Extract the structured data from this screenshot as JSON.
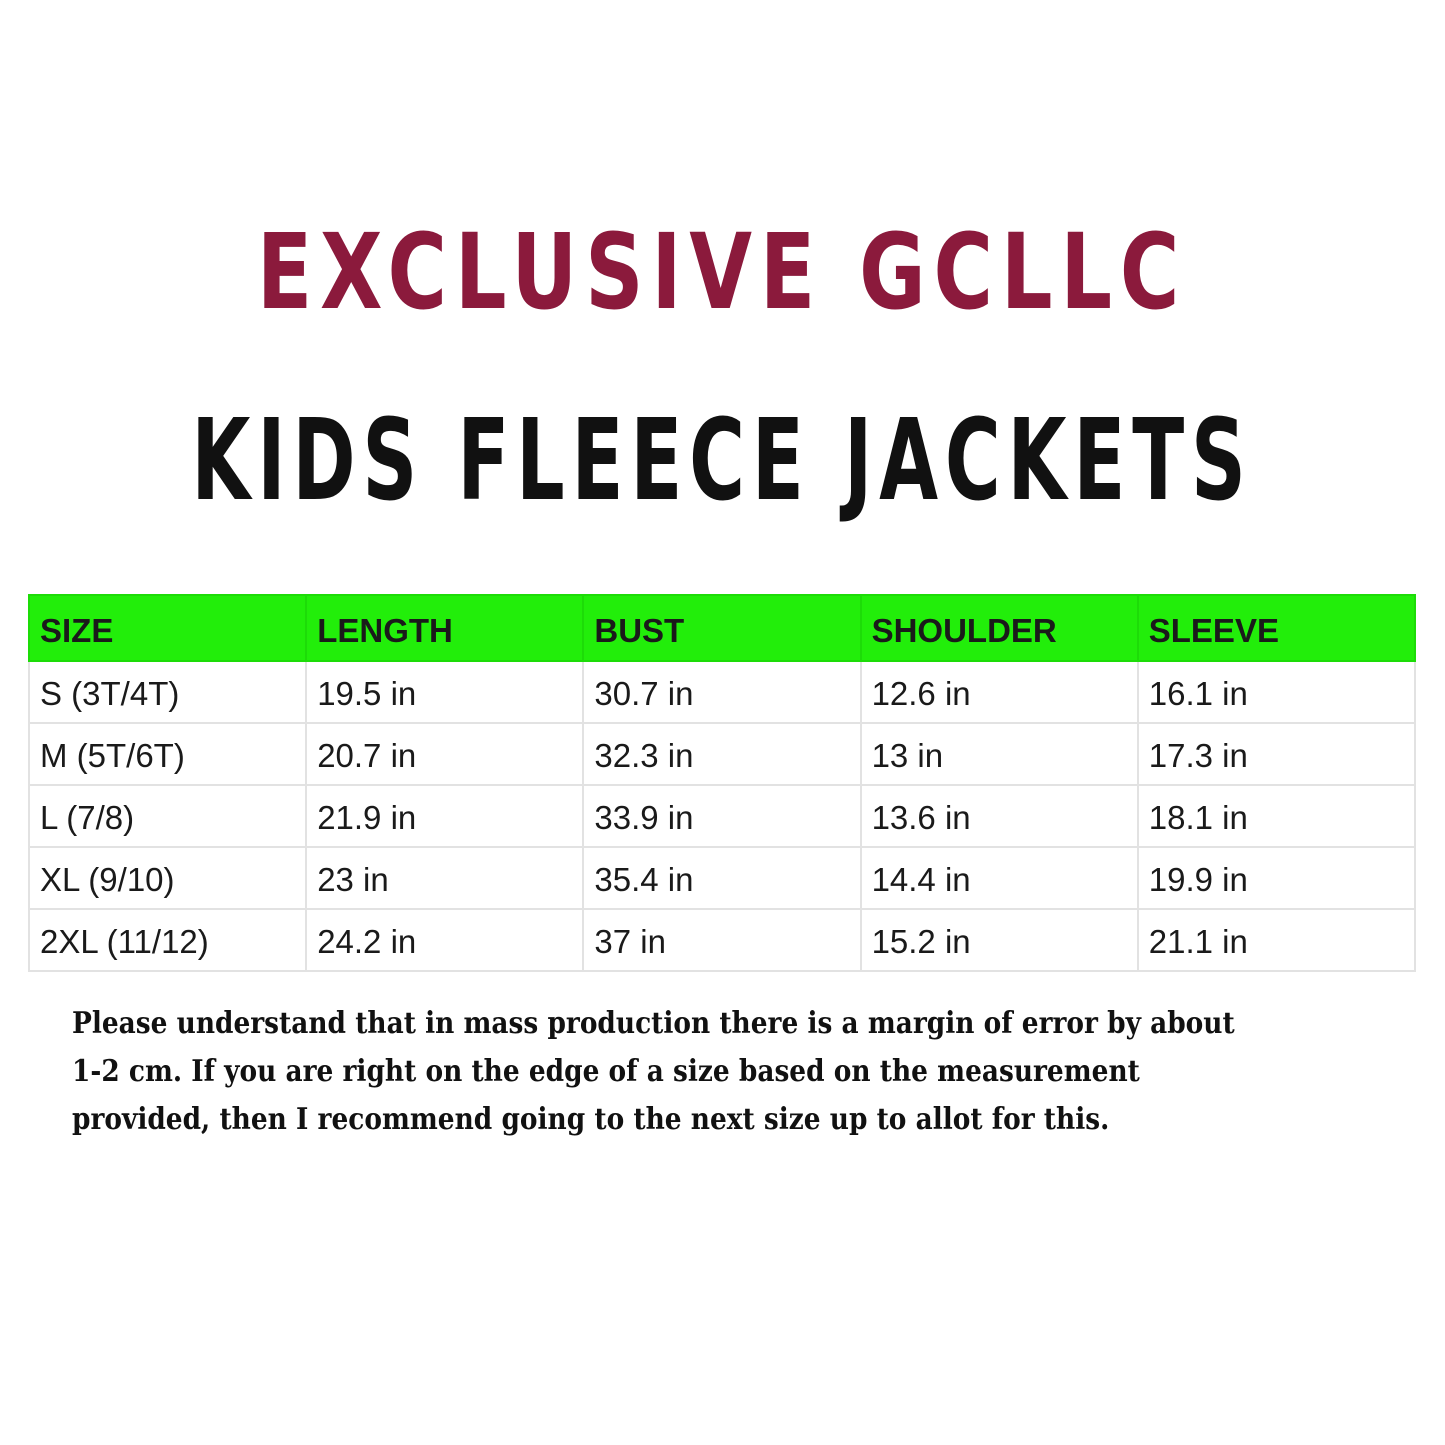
{
  "header": {
    "brand": "EXCLUSIVE GCLLC",
    "product": "KIDS FLEECE JACKETS",
    "brand_color": "#8b1a3c",
    "header_row_color": "#22ee0a"
  },
  "table": {
    "columns": [
      "SIZE",
      "LENGTH",
      "BUST",
      "SHOULDER",
      "SLEEVE"
    ],
    "rows": [
      [
        "S (3T/4T)",
        "19.5 in",
        "30.7 in",
        "12.6 in",
        "16.1 in"
      ],
      [
        "M (5T/6T)",
        "20.7 in",
        "32.3 in",
        "13 in",
        "17.3 in"
      ],
      [
        "L (7/8)",
        "21.9 in",
        "33.9 in",
        "13.6 in",
        "18.1 in"
      ],
      [
        "XL (9/10)",
        "23 in",
        "35.4 in",
        "14.4 in",
        "19.9 in"
      ],
      [
        "2XL (11/12)",
        "24.2 in",
        "37 in",
        "15.2 in",
        "21.1 in"
      ]
    ]
  },
  "note": {
    "lines": [
      "Please understand that in mass production there is a margin of error by about",
      "1-2 cm. If you are right on the edge of a size based on the measurement",
      "provided, then I recommend going to the next size up to allot for this."
    ]
  }
}
